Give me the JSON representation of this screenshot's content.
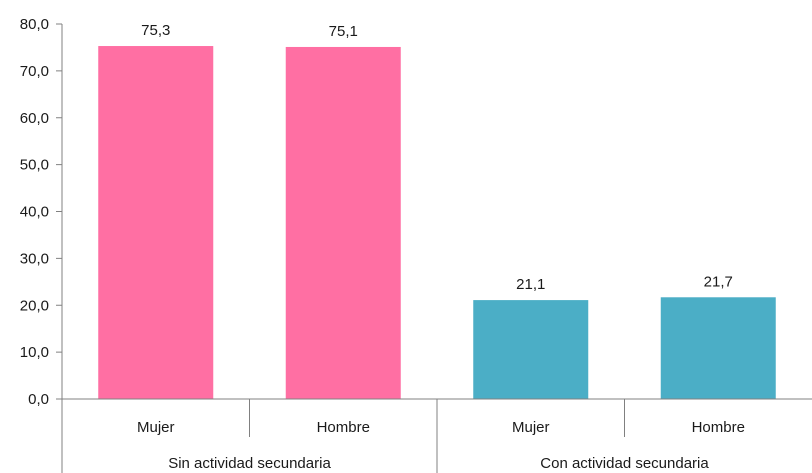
{
  "chart_data": {
    "type": "bar",
    "title": "",
    "xlabel": "",
    "ylabel": "",
    "ylim": [
      0,
      80
    ],
    "yticks": [
      "0,0",
      "10,0",
      "20,0",
      "30,0",
      "40,0",
      "50,0",
      "60,0",
      "70,0",
      "80,0"
    ],
    "grid": false,
    "legend": "none",
    "groups": [
      {
        "label": "Sin actividad secundaria",
        "color": "#FF6FA3",
        "bars": [
          {
            "category": "Mujer",
            "value": 75.3,
            "label": "75,3"
          },
          {
            "category": "Hombre",
            "value": 75.1,
            "label": "75,1"
          }
        ]
      },
      {
        "label": "Con actividad secundaria",
        "color": "#4BAEC6",
        "bars": [
          {
            "category": "Mujer",
            "value": 21.1,
            "label": "21,1"
          },
          {
            "category": "Hombre",
            "value": 21.7,
            "label": "21,7"
          }
        ]
      }
    ]
  }
}
